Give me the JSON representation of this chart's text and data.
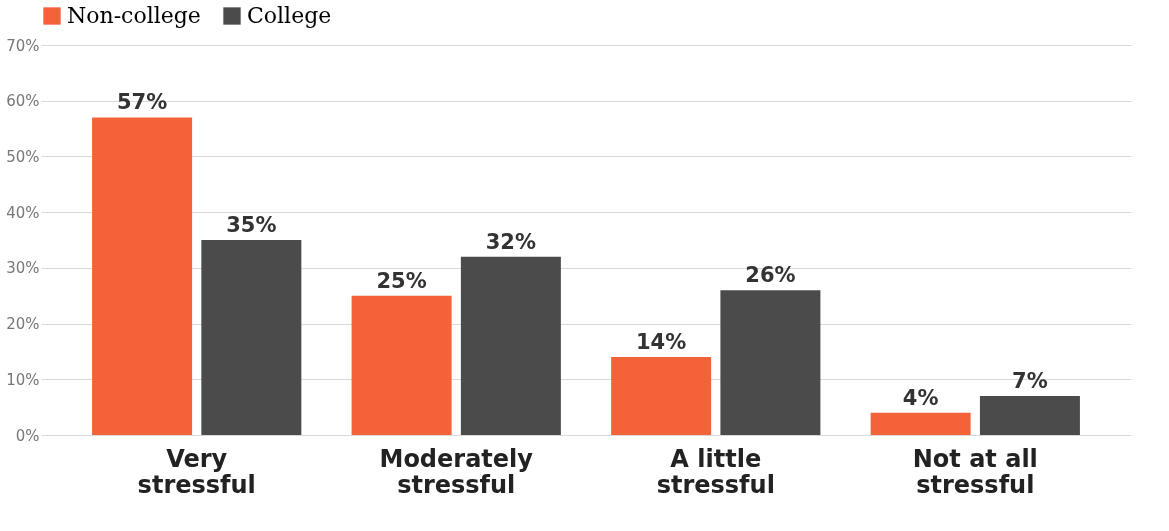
{
  "chart_data": {
    "type": "bar",
    "categories": [
      "Very stressful",
      "Moderately stressful",
      "A little stressful",
      "Not at all stressful"
    ],
    "series": [
      {
        "name": "Non-college",
        "color": "#f4623a",
        "values": [
          57,
          25,
          14,
          4
        ],
        "value_labels": [
          "57%",
          "25%",
          "14%",
          "4%"
        ]
      },
      {
        "name": "College",
        "color": "#4b4b4b",
        "values": [
          35,
          32,
          26,
          7
        ],
        "value_labels": [
          "35%",
          "32%",
          "26%",
          "7%"
        ]
      }
    ],
    "ylim": [
      0,
      70
    ],
    "yticks": [
      {
        "value": 0,
        "label": "0%"
      },
      {
        "value": 10,
        "label": "10%"
      },
      {
        "value": 20,
        "label": "20%"
      },
      {
        "value": 30,
        "label": "30%"
      },
      {
        "value": 40,
        "label": "40%"
      },
      {
        "value": 50,
        "label": "50%"
      },
      {
        "value": 60,
        "label": "60%"
      },
      {
        "value": 70,
        "label": "70%"
      }
    ],
    "grid": "y",
    "legend": "top"
  }
}
